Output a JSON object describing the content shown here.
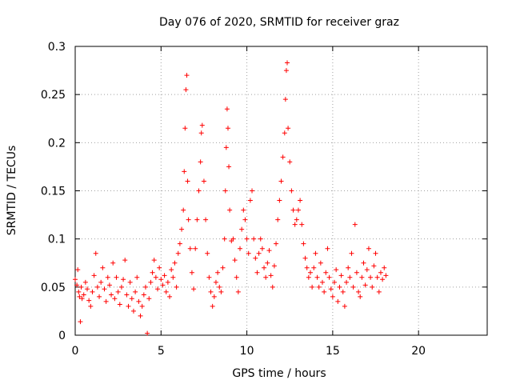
{
  "chart_data": {
    "type": "scatter",
    "title": "Day 076 of 2020, SRMTID for receiver graz",
    "xlabel": "GPS time / hours",
    "ylabel": "SRMTID / TECUs",
    "xlim": [
      0,
      24
    ],
    "ylim": [
      0,
      0.3
    ],
    "x_ticks": [
      0,
      5,
      10,
      15,
      20
    ],
    "x_tick_labels": [
      "0",
      "5",
      "10",
      "15",
      "20"
    ],
    "y_ticks": [
      0,
      0.05,
      0.1,
      0.15,
      0.2,
      0.25,
      0.3
    ],
    "y_tick_labels": [
      "0",
      "0.05",
      "0.1",
      "0.15",
      "0.2",
      "0.25",
      "0.3"
    ],
    "grid": true,
    "marker": "plus",
    "marker_color": "#ff0000",
    "series": [
      {
        "name": "SRMTID",
        "points": [
          [
            0.0,
            0.058
          ],
          [
            0.1,
            0.052
          ],
          [
            0.15,
            0.068
          ],
          [
            0.2,
            0.045
          ],
          [
            0.25,
            0.04
          ],
          [
            0.3,
            0.014
          ],
          [
            0.35,
            0.05
          ],
          [
            0.4,
            0.038
          ],
          [
            0.5,
            0.042
          ],
          [
            0.6,
            0.055
          ],
          [
            0.7,
            0.048
          ],
          [
            0.8,
            0.036
          ],
          [
            0.9,
            0.03
          ],
          [
            1.0,
            0.045
          ],
          [
            1.1,
            0.062
          ],
          [
            1.2,
            0.085
          ],
          [
            1.3,
            0.05
          ],
          [
            1.4,
            0.04
          ],
          [
            1.5,
            0.055
          ],
          [
            1.6,
            0.07
          ],
          [
            1.7,
            0.048
          ],
          [
            1.8,
            0.035
          ],
          [
            1.9,
            0.06
          ],
          [
            2.0,
            0.052
          ],
          [
            2.1,
            0.042
          ],
          [
            2.2,
            0.075
          ],
          [
            2.3,
            0.038
          ],
          [
            2.4,
            0.06
          ],
          [
            2.5,
            0.045
          ],
          [
            2.6,
            0.032
          ],
          [
            2.7,
            0.05
          ],
          [
            2.8,
            0.058
          ],
          [
            2.9,
            0.078
          ],
          [
            3.0,
            0.042
          ],
          [
            3.1,
            0.03
          ],
          [
            3.2,
            0.055
          ],
          [
            3.3,
            0.038
          ],
          [
            3.4,
            0.025
          ],
          [
            3.5,
            0.045
          ],
          [
            3.6,
            0.06
          ],
          [
            3.7,
            0.035
          ],
          [
            3.8,
            0.02
          ],
          [
            3.9,
            0.03
          ],
          [
            4.0,
            0.042
          ],
          [
            4.1,
            0.05
          ],
          [
            4.2,
            0.002
          ],
          [
            4.3,
            0.038
          ],
          [
            4.4,
            0.055
          ],
          [
            4.5,
            0.065
          ],
          [
            4.6,
            0.078
          ],
          [
            4.7,
            0.06
          ],
          [
            4.8,
            0.048
          ],
          [
            4.9,
            0.07
          ],
          [
            5.0,
            0.058
          ],
          [
            5.1,
            0.052
          ],
          [
            5.2,
            0.062
          ],
          [
            5.3,
            0.045
          ],
          [
            5.4,
            0.055
          ],
          [
            5.5,
            0.04
          ],
          [
            5.6,
            0.068
          ],
          [
            5.7,
            0.06
          ],
          [
            5.8,
            0.075
          ],
          [
            5.9,
            0.05
          ],
          [
            6.0,
            0.085
          ],
          [
            6.1,
            0.095
          ],
          [
            6.2,
            0.11
          ],
          [
            6.3,
            0.13
          ],
          [
            6.35,
            0.17
          ],
          [
            6.4,
            0.215
          ],
          [
            6.45,
            0.255
          ],
          [
            6.5,
            0.27
          ],
          [
            6.55,
            0.16
          ],
          [
            6.6,
            0.12
          ],
          [
            6.7,
            0.09
          ],
          [
            6.8,
            0.065
          ],
          [
            6.9,
            0.048
          ],
          [
            7.0,
            0.09
          ],
          [
            7.1,
            0.12
          ],
          [
            7.2,
            0.15
          ],
          [
            7.3,
            0.18
          ],
          [
            7.35,
            0.21
          ],
          [
            7.4,
            0.218
          ],
          [
            7.5,
            0.16
          ],
          [
            7.6,
            0.12
          ],
          [
            7.7,
            0.085
          ],
          [
            7.8,
            0.06
          ],
          [
            7.9,
            0.045
          ],
          [
            8.0,
            0.03
          ],
          [
            8.1,
            0.04
          ],
          [
            8.2,
            0.055
          ],
          [
            8.3,
            0.065
          ],
          [
            8.4,
            0.05
          ],
          [
            8.5,
            0.045
          ],
          [
            8.6,
            0.07
          ],
          [
            8.7,
            0.1
          ],
          [
            8.75,
            0.15
          ],
          [
            8.8,
            0.195
          ],
          [
            8.85,
            0.235
          ],
          [
            8.9,
            0.215
          ],
          [
            8.95,
            0.175
          ],
          [
            9.0,
            0.13
          ],
          [
            9.1,
            0.098
          ],
          [
            9.2,
            0.1
          ],
          [
            9.3,
            0.078
          ],
          [
            9.4,
            0.06
          ],
          [
            9.5,
            0.045
          ],
          [
            9.6,
            0.09
          ],
          [
            9.7,
            0.11
          ],
          [
            9.8,
            0.13
          ],
          [
            9.9,
            0.12
          ],
          [
            10.0,
            0.1
          ],
          [
            10.1,
            0.085
          ],
          [
            10.2,
            0.14
          ],
          [
            10.3,
            0.15
          ],
          [
            10.4,
            0.1
          ],
          [
            10.5,
            0.08
          ],
          [
            10.6,
            0.065
          ],
          [
            10.7,
            0.085
          ],
          [
            10.8,
            0.1
          ],
          [
            10.9,
            0.09
          ],
          [
            11.0,
            0.07
          ],
          [
            11.1,
            0.06
          ],
          [
            11.2,
            0.075
          ],
          [
            11.3,
            0.088
          ],
          [
            11.4,
            0.062
          ],
          [
            11.5,
            0.05
          ],
          [
            11.6,
            0.072
          ],
          [
            11.7,
            0.095
          ],
          [
            11.8,
            0.12
          ],
          [
            11.9,
            0.14
          ],
          [
            12.0,
            0.16
          ],
          [
            12.1,
            0.185
          ],
          [
            12.2,
            0.21
          ],
          [
            12.25,
            0.245
          ],
          [
            12.3,
            0.275
          ],
          [
            12.35,
            0.283
          ],
          [
            12.4,
            0.215
          ],
          [
            12.5,
            0.18
          ],
          [
            12.6,
            0.15
          ],
          [
            12.7,
            0.13
          ],
          [
            12.8,
            0.115
          ],
          [
            12.9,
            0.12
          ],
          [
            13.0,
            0.13
          ],
          [
            13.1,
            0.14
          ],
          [
            13.2,
            0.115
          ],
          [
            13.3,
            0.095
          ],
          [
            13.4,
            0.08
          ],
          [
            13.5,
            0.07
          ],
          [
            13.6,
            0.06
          ],
          [
            13.7,
            0.065
          ],
          [
            13.8,
            0.05
          ],
          [
            13.9,
            0.07
          ],
          [
            14.0,
            0.085
          ],
          [
            14.1,
            0.06
          ],
          [
            14.2,
            0.05
          ],
          [
            14.3,
            0.075
          ],
          [
            14.4,
            0.055
          ],
          [
            14.5,
            0.045
          ],
          [
            14.6,
            0.065
          ],
          [
            14.7,
            0.09
          ],
          [
            14.8,
            0.06
          ],
          [
            14.9,
            0.048
          ],
          [
            15.0,
            0.04
          ],
          [
            15.1,
            0.055
          ],
          [
            15.2,
            0.068
          ],
          [
            15.3,
            0.035
          ],
          [
            15.4,
            0.05
          ],
          [
            15.5,
            0.062
          ],
          [
            15.6,
            0.045
          ],
          [
            15.7,
            0.03
          ],
          [
            15.8,
            0.055
          ],
          [
            15.9,
            0.07
          ],
          [
            16.0,
            0.06
          ],
          [
            16.1,
            0.085
          ],
          [
            16.2,
            0.05
          ],
          [
            16.3,
            0.115
          ],
          [
            16.4,
            0.065
          ],
          [
            16.5,
            0.045
          ],
          [
            16.6,
            0.04
          ],
          [
            16.7,
            0.06
          ],
          [
            16.8,
            0.075
          ],
          [
            16.9,
            0.052
          ],
          [
            17.0,
            0.068
          ],
          [
            17.1,
            0.09
          ],
          [
            17.2,
            0.06
          ],
          [
            17.3,
            0.05
          ],
          [
            17.4,
            0.072
          ],
          [
            17.5,
            0.085
          ],
          [
            17.6,
            0.06
          ],
          [
            17.7,
            0.045
          ],
          [
            17.8,
            0.065
          ],
          [
            17.9,
            0.058
          ],
          [
            18.0,
            0.07
          ],
          [
            18.1,
            0.062
          ]
        ]
      }
    ]
  }
}
